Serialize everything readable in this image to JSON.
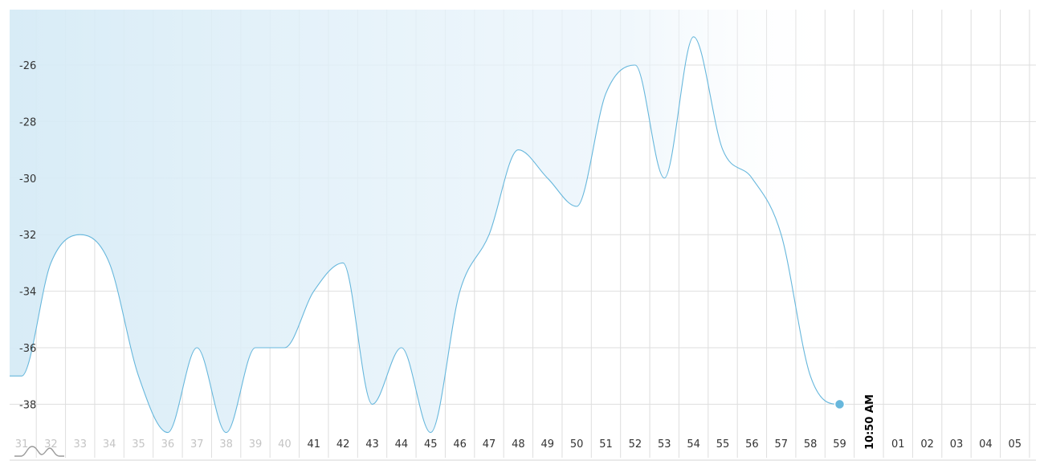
{
  "chart_data": {
    "type": "area",
    "title": "",
    "xlabel": "",
    "ylabel": "",
    "x": [
      "31",
      "32",
      "33",
      "34",
      "35",
      "36",
      "37",
      "38",
      "39",
      "40",
      "41",
      "42",
      "43",
      "44",
      "45",
      "46",
      "47",
      "48",
      "49",
      "50",
      "51",
      "52",
      "53",
      "54",
      "55",
      "56",
      "57",
      "58",
      "59"
    ],
    "series": [
      {
        "values": [
          -37,
          -33,
          -32,
          -33,
          -37,
          -39,
          -36,
          -39,
          -36,
          -36,
          -34,
          -33,
          -38,
          -36,
          -39,
          -34,
          -32,
          -29,
          -30,
          -31,
          -27,
          -26,
          -30,
          -25,
          -29,
          -30,
          -32,
          -37,
          -38
        ]
      }
    ],
    "x_ticks": [
      "31",
      "32",
      "33",
      "34",
      "35",
      "36",
      "37",
      "38",
      "39",
      "40",
      "41",
      "42",
      "43",
      "44",
      "45",
      "46",
      "47",
      "48",
      "49",
      "50",
      "51",
      "52",
      "53",
      "54",
      "55",
      "56",
      "57",
      "58",
      "59",
      "10:50 AM",
      "01",
      "02",
      "03",
      "04",
      "05"
    ],
    "faded_ticks": [
      "31",
      "32",
      "33",
      "34",
      "35",
      "36",
      "37",
      "38",
      "39",
      "40"
    ],
    "marker_label": "10:50 AM",
    "y_ticks": [
      -26,
      -28,
      -30,
      -32,
      -34,
      -36,
      -38
    ],
    "ylim": [
      -39.5,
      -24
    ],
    "grid": true,
    "colors": {
      "line": "#67b7dc",
      "fill": "#d9eef8",
      "grid": "#dedede"
    }
  }
}
